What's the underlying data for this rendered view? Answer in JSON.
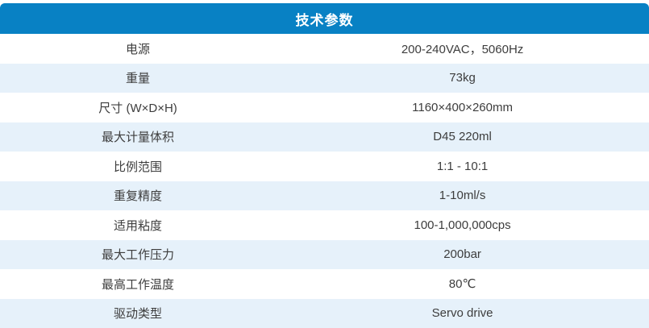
{
  "table": {
    "title": "技术参数",
    "rows": [
      {
        "label": "电源",
        "value": "200-240VAC，5060Hz"
      },
      {
        "label": "重量",
        "value": "73kg"
      },
      {
        "label": "尺寸 (W×D×H)",
        "value": "1160×400×260mm"
      },
      {
        "label": "最大计量体积",
        "value": "D45 220ml"
      },
      {
        "label": "比例范围",
        "value": "1:1 - 10:1"
      },
      {
        "label": "重复精度",
        "value": "1-10ml/s"
      },
      {
        "label": "适用粘度",
        "value": "100-1,000,000cps"
      },
      {
        "label": "最大工作压力",
        "value": "200bar"
      },
      {
        "label": "最高工作温度",
        "value": "80℃"
      },
      {
        "label": "驱动类型",
        "value": "Servo drive"
      }
    ]
  },
  "colors": {
    "header_bg": "#0881c4",
    "row_alt_bg": "#e6f1fa",
    "row_bg": "#ffffff",
    "text": "#3d3d3d",
    "header_text": "#ffffff"
  }
}
